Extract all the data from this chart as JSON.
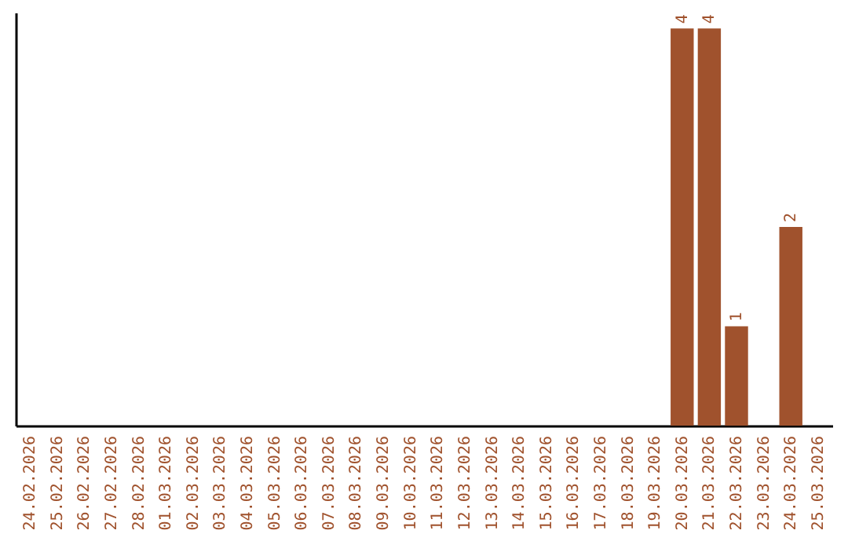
{
  "chart_data": {
    "type": "bar",
    "categories": [
      "24.02.2026",
      "25.02.2026",
      "26.02.2026",
      "27.02.2026",
      "28.02.2026",
      "01.03.2026",
      "02.03.2026",
      "03.03.2026",
      "04.03.2026",
      "05.03.2026",
      "06.03.2026",
      "07.03.2026",
      "08.03.2026",
      "09.03.2026",
      "10.03.2026",
      "11.03.2026",
      "12.03.2026",
      "13.03.2026",
      "14.03.2026",
      "15.03.2026",
      "16.03.2026",
      "17.03.2026",
      "18.03.2026",
      "19.03.2026",
      "20.03.2026",
      "21.03.2026",
      "22.03.2026",
      "23.03.2026",
      "24.03.2026",
      "25.03.2026"
    ],
    "values": [
      null,
      null,
      null,
      null,
      null,
      null,
      null,
      null,
      null,
      null,
      null,
      null,
      null,
      null,
      null,
      null,
      null,
      null,
      null,
      null,
      null,
      null,
      null,
      null,
      4,
      4,
      1,
      null,
      2,
      null
    ],
    "data_labels": true,
    "color": "#a0522d",
    "ylim": [
      0,
      4.16
    ],
    "tick_labels": "x",
    "grid": false
  }
}
